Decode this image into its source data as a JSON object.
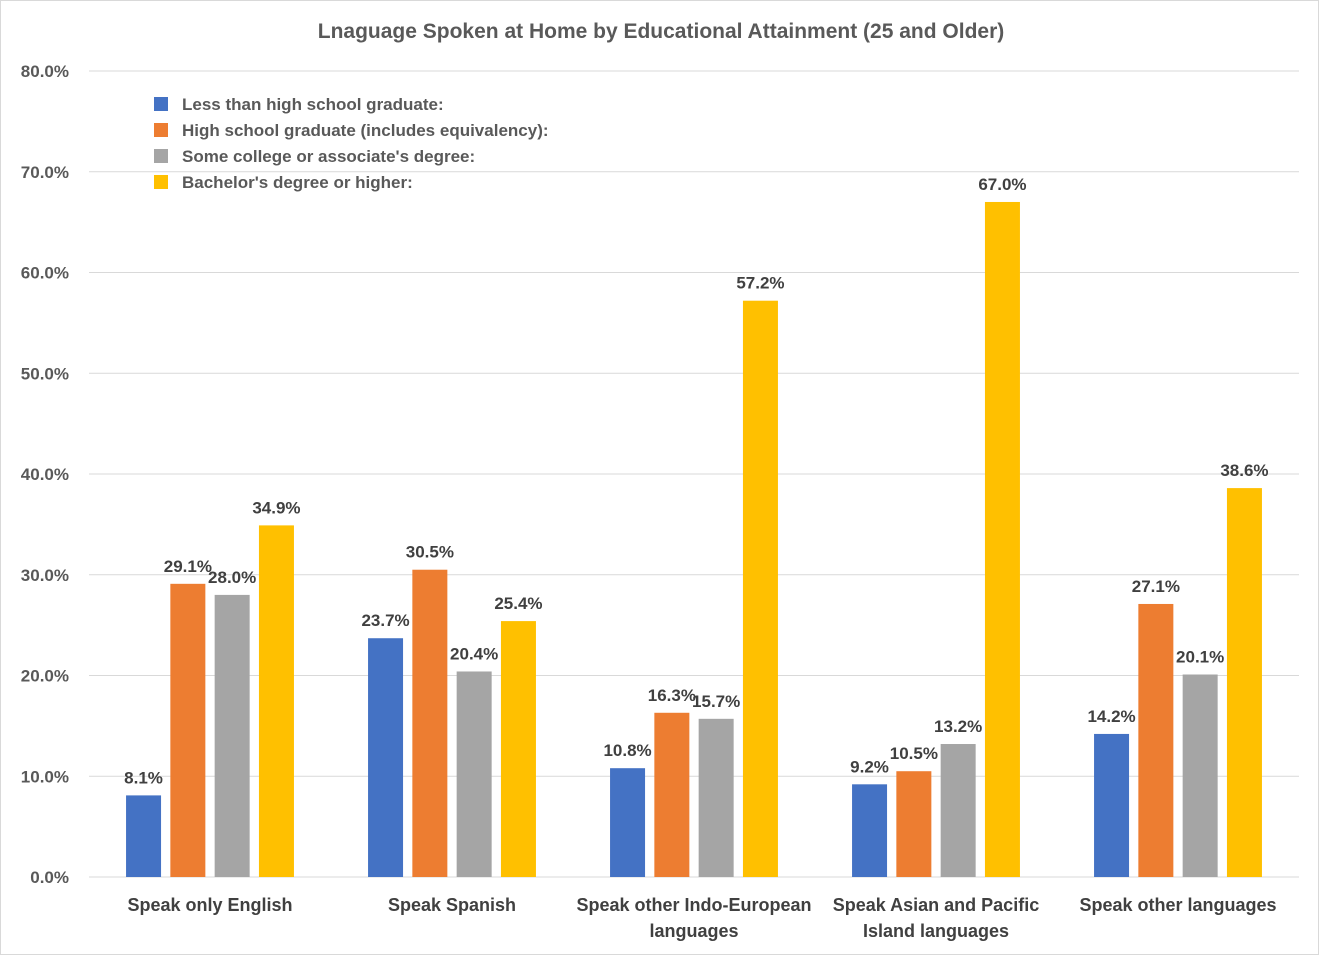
{
  "chart_data": {
    "type": "bar",
    "title": "Lnaguage Spoken at Home by Educational Attainment (25 and Older)",
    "xlabel": "",
    "ylabel": "",
    "ylim": [
      0,
      80
    ],
    "y_ticks": [
      "0.0%",
      "10.0%",
      "20.0%",
      "30.0%",
      "40.0%",
      "50.0%",
      "60.0%",
      "70.0%",
      "80.0%"
    ],
    "grid": true,
    "legend_position": "top-left",
    "categories": [
      [
        "Speak only English"
      ],
      [
        "Speak Spanish"
      ],
      [
        "Speak other Indo-European",
        "languages"
      ],
      [
        "Speak Asian and Pacific",
        "Island languages"
      ],
      [
        "Speak other languages"
      ]
    ],
    "series": [
      {
        "name": "Less than high school graduate:",
        "color": "#4472c4",
        "values": [
          8.1,
          23.7,
          10.8,
          9.2,
          14.2
        ],
        "labels": [
          "8.1%",
          "23.7%",
          "10.8%",
          "9.2%",
          "14.2%"
        ]
      },
      {
        "name": "High school graduate (includes equivalency):",
        "color": "#ed7d31",
        "values": [
          29.1,
          30.5,
          16.3,
          10.5,
          27.1
        ],
        "labels": [
          "29.1%",
          "30.5%",
          "16.3%",
          "10.5%",
          "27.1%"
        ]
      },
      {
        "name": "Some college or associate's degree:",
        "color": "#a5a5a5",
        "values": [
          28.0,
          20.4,
          15.7,
          13.2,
          20.1
        ],
        "labels": [
          "28.0%",
          "20.4%",
          "15.7%",
          "13.2%",
          "20.1%"
        ]
      },
      {
        "name": "Bachelor's degree or higher:",
        "color": "#ffc000",
        "values": [
          34.9,
          25.4,
          57.2,
          67.0,
          38.6
        ],
        "labels": [
          "34.9%",
          "25.4%",
          "57.2%",
          "67.0%",
          "38.6%"
        ]
      }
    ]
  }
}
